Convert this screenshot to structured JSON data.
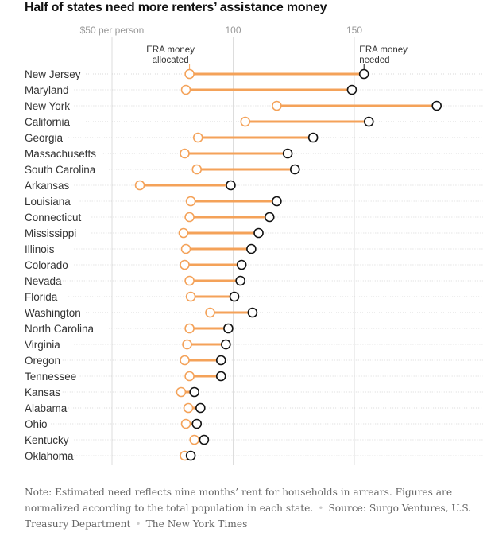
{
  "chart_data": {
    "type": "dumbbell",
    "title": "Half of states need more renters’ assistance money",
    "x_ticks": [
      {
        "value": 50,
        "label": "$50 per person"
      },
      {
        "value": 100,
        "label": "100"
      },
      {
        "value": 150,
        "label": "150"
      }
    ],
    "xlim": [
      50,
      190
    ],
    "grid": true,
    "series": [
      {
        "name": "ERA money allocated",
        "marker": "open-circle",
        "color": "#f4a259"
      },
      {
        "name": "ERA money needed",
        "marker": "open-circle",
        "color": "#121212"
      }
    ],
    "annotations": {
      "allocated": [
        "ERA money",
        "allocated"
      ],
      "needed": [
        "ERA money",
        "needed"
      ]
    },
    "line_color": "#f4a259",
    "rows": [
      {
        "state": "New Jersey",
        "allocated": 82,
        "needed": 154
      },
      {
        "state": "Maryland",
        "allocated": 80.5,
        "needed": 149
      },
      {
        "state": "New York",
        "allocated": 118,
        "needed": 184
      },
      {
        "state": "California",
        "allocated": 105,
        "needed": 156
      },
      {
        "state": "Georgia",
        "allocated": 85.5,
        "needed": 133
      },
      {
        "state": "Massachusetts",
        "allocated": 80,
        "needed": 122.5
      },
      {
        "state": "South Carolina",
        "allocated": 85,
        "needed": 125.5
      },
      {
        "state": "Arkansas",
        "allocated": 61.5,
        "needed": 99
      },
      {
        "state": "Louisiana",
        "allocated": 82.5,
        "needed": 118
      },
      {
        "state": "Connecticut",
        "allocated": 82,
        "needed": 115
      },
      {
        "state": "Mississippi",
        "allocated": 79.5,
        "needed": 110.5
      },
      {
        "state": "Illinois",
        "allocated": 80.5,
        "needed": 107.5
      },
      {
        "state": "Colorado",
        "allocated": 80,
        "needed": 103.5
      },
      {
        "state": "Nevada",
        "allocated": 82,
        "needed": 103
      },
      {
        "state": "Florida",
        "allocated": 82.5,
        "needed": 100.5
      },
      {
        "state": "Washington",
        "allocated": 90.5,
        "needed": 108
      },
      {
        "state": "North Carolina",
        "allocated": 82,
        "needed": 98
      },
      {
        "state": "Virginia",
        "allocated": 81,
        "needed": 97
      },
      {
        "state": "Oregon",
        "allocated": 80,
        "needed": 95
      },
      {
        "state": "Tennessee",
        "allocated": 82,
        "needed": 95
      },
      {
        "state": "Kansas",
        "allocated": 78.5,
        "needed": 84
      },
      {
        "state": "Alabama",
        "allocated": 81.5,
        "needed": 86.5
      },
      {
        "state": "Ohio",
        "allocated": 80.5,
        "needed": 85
      },
      {
        "state": "Kentucky",
        "allocated": 84,
        "needed": 88
      },
      {
        "state": "Oklahoma",
        "allocated": 80,
        "needed": 82.5
      }
    ]
  },
  "footer": {
    "note": "Note: Estimated need reflects nine months’ rent for households in arrears. Figures are normalized according to the total population in each state.",
    "source": "Source: Surgo Ventures, U.S. Treasury Department",
    "credit": "The New York Times"
  }
}
